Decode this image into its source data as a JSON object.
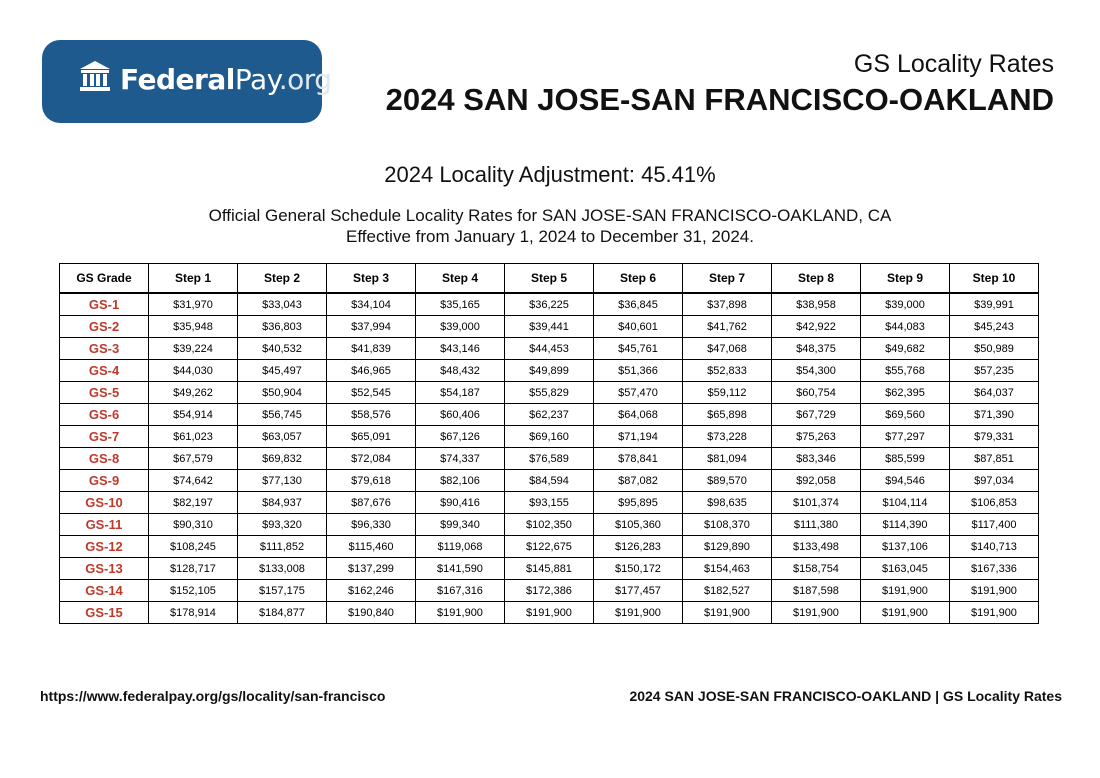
{
  "logo": {
    "icon": "bank-building-icon",
    "brand_bold": "Federal",
    "brand_mid": "Pay",
    "brand_suffix": ".org",
    "color": "#1e5a8e"
  },
  "header": {
    "subtitle": "GS Locality Rates",
    "title": "2024 SAN JOSE-SAN FRANCISCO-OAKLAND"
  },
  "adjustment": "2024 Locality Adjustment: 45.41%",
  "description": {
    "line1": "Official General Schedule Locality Rates for SAN JOSE-SAN FRANCISCO-OAKLAND, CA",
    "line2": "Effective from January 1, 2024 to December 31, 2024."
  },
  "table": {
    "headers": [
      "GS Grade",
      "Step 1",
      "Step 2",
      "Step 3",
      "Step 4",
      "Step 5",
      "Step 6",
      "Step 7",
      "Step 8",
      "Step 9",
      "Step 10"
    ],
    "grade_color": "#c0392b",
    "rows": [
      [
        "GS-1",
        "$31,970",
        "$33,043",
        "$34,104",
        "$35,165",
        "$36,225",
        "$36,845",
        "$37,898",
        "$38,958",
        "$39,000",
        "$39,991"
      ],
      [
        "GS-2",
        "$35,948",
        "$36,803",
        "$37,994",
        "$39,000",
        "$39,441",
        "$40,601",
        "$41,762",
        "$42,922",
        "$44,083",
        "$45,243"
      ],
      [
        "GS-3",
        "$39,224",
        "$40,532",
        "$41,839",
        "$43,146",
        "$44,453",
        "$45,761",
        "$47,068",
        "$48,375",
        "$49,682",
        "$50,989"
      ],
      [
        "GS-4",
        "$44,030",
        "$45,497",
        "$46,965",
        "$48,432",
        "$49,899",
        "$51,366",
        "$52,833",
        "$54,300",
        "$55,768",
        "$57,235"
      ],
      [
        "GS-5",
        "$49,262",
        "$50,904",
        "$52,545",
        "$54,187",
        "$55,829",
        "$57,470",
        "$59,112",
        "$60,754",
        "$62,395",
        "$64,037"
      ],
      [
        "GS-6",
        "$54,914",
        "$56,745",
        "$58,576",
        "$60,406",
        "$62,237",
        "$64,068",
        "$65,898",
        "$67,729",
        "$69,560",
        "$71,390"
      ],
      [
        "GS-7",
        "$61,023",
        "$63,057",
        "$65,091",
        "$67,126",
        "$69,160",
        "$71,194",
        "$73,228",
        "$75,263",
        "$77,297",
        "$79,331"
      ],
      [
        "GS-8",
        "$67,579",
        "$69,832",
        "$72,084",
        "$74,337",
        "$76,589",
        "$78,841",
        "$81,094",
        "$83,346",
        "$85,599",
        "$87,851"
      ],
      [
        "GS-9",
        "$74,642",
        "$77,130",
        "$79,618",
        "$82,106",
        "$84,594",
        "$87,082",
        "$89,570",
        "$92,058",
        "$94,546",
        "$97,034"
      ],
      [
        "GS-10",
        "$82,197",
        "$84,937",
        "$87,676",
        "$90,416",
        "$93,155",
        "$95,895",
        "$98,635",
        "$101,374",
        "$104,114",
        "$106,853"
      ],
      [
        "GS-11",
        "$90,310",
        "$93,320",
        "$96,330",
        "$99,340",
        "$102,350",
        "$105,360",
        "$108,370",
        "$111,380",
        "$114,390",
        "$117,400"
      ],
      [
        "GS-12",
        "$108,245",
        "$111,852",
        "$115,460",
        "$119,068",
        "$122,675",
        "$126,283",
        "$129,890",
        "$133,498",
        "$137,106",
        "$140,713"
      ],
      [
        "GS-13",
        "$128,717",
        "$133,008",
        "$137,299",
        "$141,590",
        "$145,881",
        "$150,172",
        "$154,463",
        "$158,754",
        "$163,045",
        "$167,336"
      ],
      [
        "GS-14",
        "$152,105",
        "$157,175",
        "$162,246",
        "$167,316",
        "$172,386",
        "$177,457",
        "$182,527",
        "$187,598",
        "$191,900",
        "$191,900"
      ],
      [
        "GS-15",
        "$178,914",
        "$184,877",
        "$190,840",
        "$191,900",
        "$191,900",
        "$191,900",
        "$191,900",
        "$191,900",
        "$191,900",
        "$191,900"
      ]
    ]
  },
  "footer": {
    "url": "https://www.federalpay.org/gs/locality/san-francisco",
    "right": "2024 SAN JOSE-SAN FRANCISCO-OAKLAND | GS Locality Rates"
  }
}
